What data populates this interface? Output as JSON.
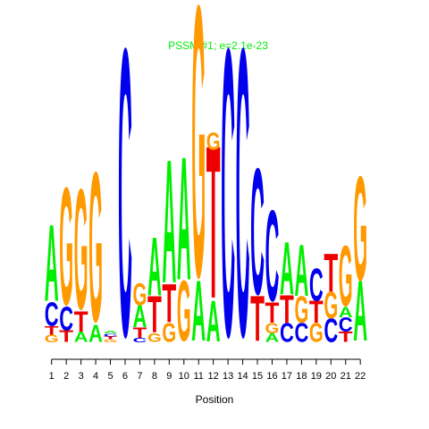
{
  "chart_data": {
    "type": "sequence-logo",
    "title": "PSSM #1; e=2.1e-23",
    "xlabel": "Position",
    "ylabel": "",
    "x_ticks": [
      "1",
      "2",
      "3",
      "4",
      "5",
      "6",
      "7",
      "8",
      "9",
      "10",
      "11",
      "12",
      "13",
      "14",
      "15",
      "16",
      "17",
      "18",
      "19",
      "20",
      "21",
      "22"
    ],
    "ylim": [
      0,
      2
    ],
    "colors": {
      "A": "#00ee00",
      "C": "#0000ee",
      "G": "#ff9900",
      "T": "#ee0000"
    },
    "columns": [
      {
        "position": 1,
        "letters": [
          [
            "G",
            0.05
          ],
          [
            "T",
            0.06
          ],
          [
            "C",
            0.16
          ],
          [
            "A",
            0.52
          ]
        ]
      },
      {
        "position": 2,
        "letters": [
          [
            "T",
            0.08
          ],
          [
            "C",
            0.16
          ],
          [
            "G",
            0.8
          ]
        ]
      },
      {
        "position": 3,
        "letters": [
          [
            "A",
            0.07
          ],
          [
            "T",
            0.14
          ],
          [
            "G",
            0.82
          ]
        ]
      },
      {
        "position": 4,
        "letters": [
          [
            "A",
            0.12
          ],
          [
            "G",
            1.02
          ]
        ]
      },
      {
        "position": 5,
        "letters": [
          [
            "G",
            0.02
          ],
          [
            "T",
            0.02
          ],
          [
            "C",
            0.02
          ],
          [
            "A",
            0.02
          ]
        ]
      },
      {
        "position": 6,
        "letters": [
          [
            "C",
            1.96
          ]
        ]
      },
      {
        "position": 7,
        "letters": [
          [
            "C",
            0.03
          ],
          [
            "T",
            0.07
          ],
          [
            "A",
            0.15
          ],
          [
            "G",
            0.15
          ]
        ]
      },
      {
        "position": 8,
        "letters": [
          [
            "G",
            0.06
          ],
          [
            "T",
            0.25
          ],
          [
            "A",
            0.4
          ]
        ]
      },
      {
        "position": 9,
        "letters": [
          [
            "G",
            0.13
          ],
          [
            "T",
            0.26
          ],
          [
            "A",
            0.84
          ]
        ]
      },
      {
        "position": 10,
        "letters": [
          [
            "G",
            0.41
          ],
          [
            "A",
            0.84
          ]
        ]
      },
      {
        "position": 11,
        "letters": [
          [
            "A",
            0.41
          ],
          [
            "G",
            1.85
          ]
        ]
      },
      {
        "position": 12,
        "letters": [
          [
            "A",
            0.28
          ],
          [
            "T",
            1.04
          ],
          [
            "G",
            0.12
          ]
        ]
      },
      {
        "position": 13,
        "letters": [
          [
            "C",
            1.96
          ]
        ]
      },
      {
        "position": 14,
        "letters": [
          [
            "C",
            1.96
          ]
        ]
      },
      {
        "position": 15,
        "letters": [
          [
            "T",
            0.31
          ],
          [
            "C",
            0.86
          ]
        ]
      },
      {
        "position": 16,
        "letters": [
          [
            "A",
            0.06
          ],
          [
            "G",
            0.07
          ],
          [
            "T",
            0.14
          ],
          [
            "C",
            0.62
          ]
        ]
      },
      {
        "position": 17,
        "letters": [
          [
            "C",
            0.13
          ],
          [
            "T",
            0.19
          ],
          [
            "A",
            0.36
          ]
        ]
      },
      {
        "position": 18,
        "letters": [
          [
            "C",
            0.13
          ],
          [
            "G",
            0.18
          ],
          [
            "A",
            0.35
          ]
        ]
      },
      {
        "position": 19,
        "letters": [
          [
            "G",
            0.13
          ],
          [
            "T",
            0.15
          ],
          [
            "C",
            0.22
          ]
        ]
      },
      {
        "position": 20,
        "letters": [
          [
            "C",
            0.16
          ],
          [
            "G",
            0.18
          ],
          [
            "T",
            0.26
          ]
        ]
      },
      {
        "position": 21,
        "letters": [
          [
            "T",
            0.07
          ],
          [
            "C",
            0.1
          ],
          [
            "A",
            0.07
          ],
          [
            "G",
            0.41
          ]
        ]
      },
      {
        "position": 22,
        "letters": [
          [
            "A",
            0.41
          ],
          [
            "G",
            0.71
          ]
        ]
      }
    ]
  }
}
